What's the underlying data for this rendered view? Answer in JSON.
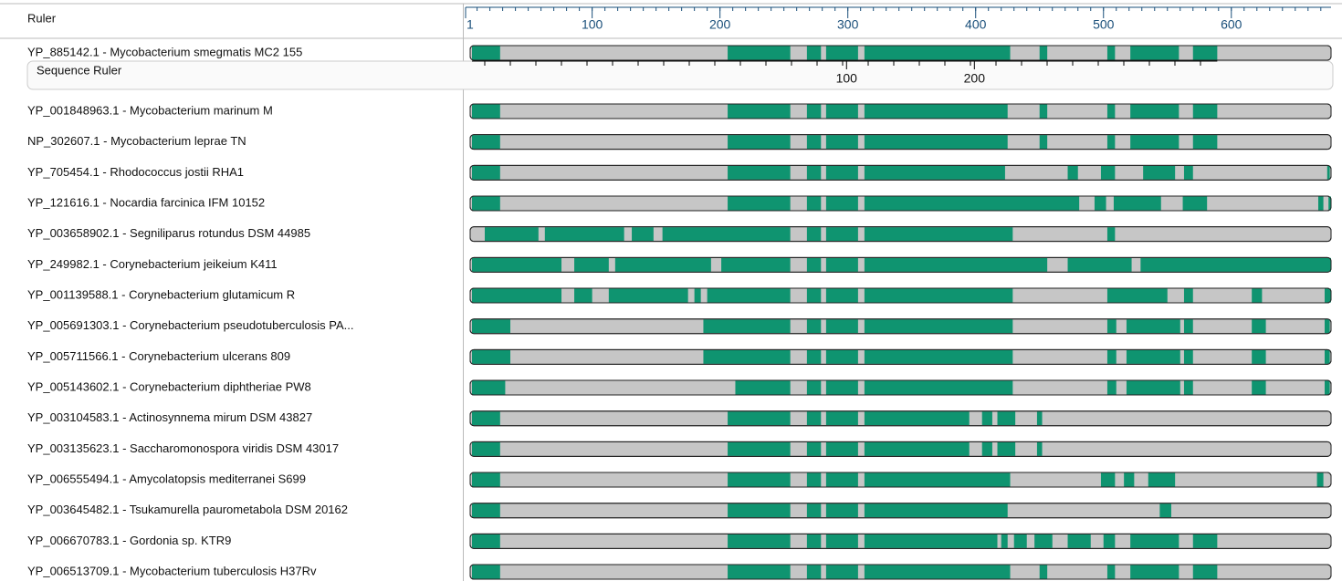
{
  "ruler": {
    "label": "Ruler",
    "range": [
      1,
      678
    ],
    "ticks": [
      1,
      100,
      200,
      300,
      400,
      500,
      600
    ]
  },
  "sequence_ruler": {
    "label": "Sequence Ruler",
    "ticks": [
      {
        "value": 100,
        "column": 299
      },
      {
        "value": 200,
        "column": 399
      }
    ]
  },
  "sequences": [
    {
      "name": "YP_885142.1 - Mycobacterium smegmatis MC2 155",
      "segments": [
        [
          6,
          28
        ],
        [
          206,
          255
        ],
        [
          268,
          279
        ],
        [
          283,
          308
        ],
        [
          313,
          427
        ],
        [
          450,
          456
        ],
        [
          503,
          509
        ],
        [
          521,
          559
        ],
        [
          570,
          589
        ]
      ]
    },
    {
      "name": "YP_001848963.1 - Mycobacterium marinum M",
      "segments": [
        [
          6,
          28
        ],
        [
          206,
          255
        ],
        [
          268,
          279
        ],
        [
          283,
          308
        ],
        [
          313,
          425
        ],
        [
          450,
          456
        ],
        [
          503,
          509
        ],
        [
          521,
          559
        ],
        [
          570,
          589
        ]
      ]
    },
    {
      "name": "NP_302607.1 - Mycobacterium leprae TN",
      "segments": [
        [
          6,
          28
        ],
        [
          206,
          255
        ],
        [
          268,
          279
        ],
        [
          283,
          308
        ],
        [
          313,
          425
        ],
        [
          450,
          456
        ],
        [
          503,
          509
        ],
        [
          521,
          559
        ],
        [
          570,
          589
        ]
      ]
    },
    {
      "name": "YP_705454.1 - Rhodococcus jostii RHA1",
      "segments": [
        [
          6,
          28
        ],
        [
          206,
          255
        ],
        [
          268,
          279
        ],
        [
          283,
          308
        ],
        [
          313,
          423
        ],
        [
          472,
          480
        ],
        [
          498,
          509
        ],
        [
          531,
          556
        ],
        [
          563,
          570
        ],
        [
          675,
          677
        ]
      ]
    },
    {
      "name": "YP_121616.1 - Nocardia farcinica IFM 10152",
      "segments": [
        [
          6,
          28
        ],
        [
          206,
          255
        ],
        [
          268,
          279
        ],
        [
          283,
          308
        ],
        [
          313,
          481
        ],
        [
          493,
          502
        ],
        [
          508,
          545
        ],
        [
          562,
          581
        ],
        [
          668,
          672
        ],
        [
          676,
          678
        ]
      ]
    },
    {
      "name": "YP_003658902.1 - Segniliparus rotundus DSM 44985",
      "segments": [
        [
          16,
          58
        ],
        [
          63,
          125
        ],
        [
          131,
          148
        ],
        [
          155,
          255
        ],
        [
          268,
          279
        ],
        [
          283,
          308
        ],
        [
          313,
          429
        ],
        [
          503,
          509
        ]
      ]
    },
    {
      "name": "YP_249982.1 - Corynebacterium jeikeium K411",
      "segments": [
        [
          6,
          76
        ],
        [
          86,
          113
        ],
        [
          118,
          193
        ],
        [
          201,
          255
        ],
        [
          268,
          279
        ],
        [
          283,
          308
        ],
        [
          313,
          456
        ],
        [
          472,
          522
        ],
        [
          529,
          678
        ]
      ]
    },
    {
      "name": "YP_001139588.1 - Corynebacterium glutamicum R",
      "segments": [
        [
          6,
          76
        ],
        [
          86,
          100
        ],
        [
          113,
          175
        ],
        [
          180,
          185
        ],
        [
          190,
          255
        ],
        [
          268,
          279
        ],
        [
          283,
          308
        ],
        [
          313,
          429
        ],
        [
          503,
          550
        ],
        [
          563,
          570
        ],
        [
          616,
          624
        ],
        [
          673,
          678
        ]
      ]
    },
    {
      "name": "YP_005691303.1 - Corynebacterium pseudotuberculosis PA...",
      "segments": [
        [
          6,
          36
        ],
        [
          187,
          255
        ],
        [
          268,
          279
        ],
        [
          283,
          308
        ],
        [
          313,
          429
        ],
        [
          503,
          510
        ],
        [
          518,
          560
        ],
        [
          563,
          570
        ],
        [
          616,
          627
        ],
        [
          673,
          677
        ]
      ]
    },
    {
      "name": "YP_005711566.1 - Corynebacterium ulcerans 809",
      "segments": [
        [
          6,
          36
        ],
        [
          187,
          255
        ],
        [
          268,
          279
        ],
        [
          283,
          308
        ],
        [
          313,
          429
        ],
        [
          503,
          510
        ],
        [
          518,
          560
        ],
        [
          563,
          570
        ],
        [
          616,
          627
        ],
        [
          673,
          677
        ]
      ]
    },
    {
      "name": "YP_005143602.1 - Corynebacterium diphtheriae PW8",
      "segments": [
        [
          6,
          32
        ],
        [
          212,
          255
        ],
        [
          268,
          279
        ],
        [
          283,
          308
        ],
        [
          313,
          429
        ],
        [
          503,
          510
        ],
        [
          518,
          560
        ],
        [
          563,
          570
        ],
        [
          616,
          627
        ],
        [
          673,
          677
        ]
      ]
    },
    {
      "name": "YP_003104583.1 - Actinosynnema mirum DSM 43827",
      "segments": [
        [
          6,
          28
        ],
        [
          206,
          255
        ],
        [
          268,
          279
        ],
        [
          283,
          308
        ],
        [
          313,
          395
        ],
        [
          405,
          413
        ],
        [
          417,
          431
        ],
        [
          448,
          452
        ]
      ]
    },
    {
      "name": "YP_003135623.1 - Saccharomonospora viridis DSM 43017",
      "segments": [
        [
          6,
          28
        ],
        [
          206,
          255
        ],
        [
          268,
          279
        ],
        [
          283,
          308
        ],
        [
          313,
          395
        ],
        [
          405,
          413
        ],
        [
          417,
          431
        ],
        [
          448,
          452
        ]
      ]
    },
    {
      "name": "YP_006555494.1 - Amycolatopsis mediterranei S699",
      "segments": [
        [
          6,
          28
        ],
        [
          206,
          255
        ],
        [
          268,
          279
        ],
        [
          283,
          308
        ],
        [
          313,
          427
        ],
        [
          498,
          509
        ],
        [
          516,
          524
        ],
        [
          535,
          556
        ],
        [
          667,
          672
        ]
      ]
    },
    {
      "name": "YP_003645482.1 - Tsukamurella paurometabola DSM 20162",
      "segments": [
        [
          6,
          28
        ],
        [
          206,
          255
        ],
        [
          268,
          279
        ],
        [
          283,
          308
        ],
        [
          313,
          425
        ],
        [
          544,
          553
        ]
      ]
    },
    {
      "name": "YP_006670783.1 - Gordonia sp. KTR9",
      "segments": [
        [
          6,
          28
        ],
        [
          206,
          255
        ],
        [
          268,
          279
        ],
        [
          283,
          308
        ],
        [
          313,
          417
        ],
        [
          420,
          425
        ],
        [
          430,
          440
        ],
        [
          446,
          460
        ],
        [
          472,
          490
        ],
        [
          500,
          509
        ],
        [
          521,
          559
        ],
        [
          570,
          589
        ]
      ]
    },
    {
      "name": "YP_006513709.1 - Mycobacterium tuberculosis H37Rv",
      "segments": [
        [
          6,
          28
        ],
        [
          206,
          255
        ],
        [
          268,
          279
        ],
        [
          283,
          308
        ],
        [
          313,
          427
        ],
        [
          450,
          456
        ],
        [
          503,
          509
        ],
        [
          521,
          559
        ],
        [
          570,
          589
        ]
      ]
    }
  ]
}
